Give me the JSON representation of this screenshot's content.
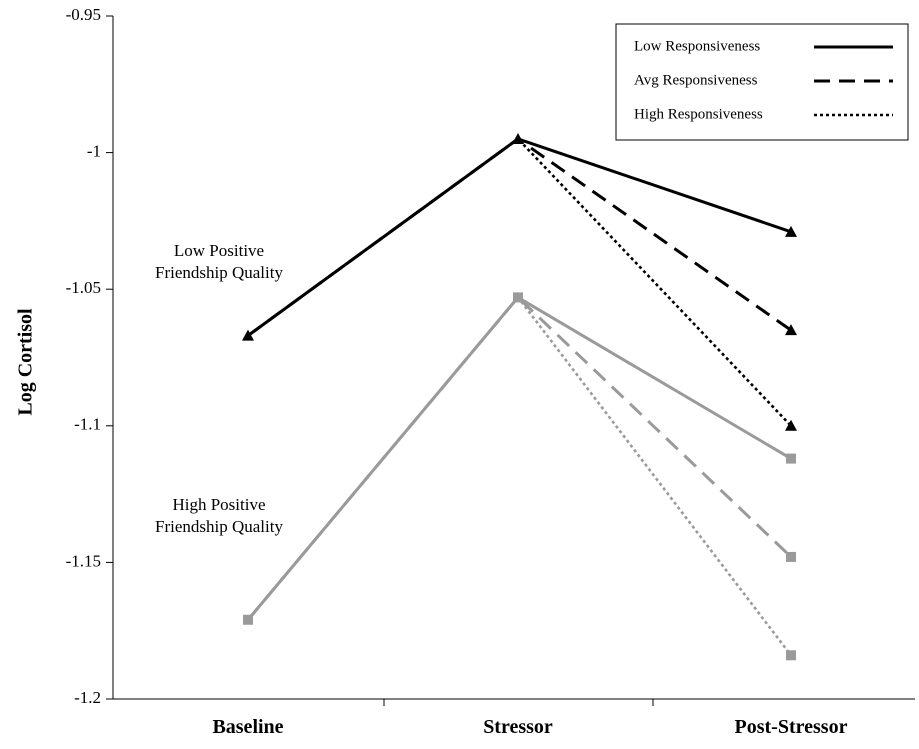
{
  "chart_data": {
    "type": "line",
    "title": "",
    "xlabel": "",
    "ylabel": "Log Cortisol",
    "categories": [
      "Baseline",
      "Stressor",
      "Post-Stressor"
    ],
    "ylim": [
      -1.2,
      -0.95
    ],
    "yticks": [
      -0.95,
      -1,
      -1.05,
      -1.1,
      -1.15,
      -1.2
    ],
    "ytick_labels": [
      "-0.95",
      "-1",
      "-1.05",
      "-1.1",
      "-1.15",
      "-1.2"
    ],
    "grid": false,
    "legend_position": "top-right",
    "legend": [
      {
        "label": "Low Responsiveness",
        "dash": "solid"
      },
      {
        "label": "Avg Responsiveness",
        "dash": "dashed"
      },
      {
        "label": "High Responsiveness",
        "dash": "dotted"
      }
    ],
    "groups": [
      {
        "annotation_lines": [
          "Low Positive",
          "Friendship Quality"
        ],
        "color": "#000000",
        "marker": "triangle",
        "series": [
          {
            "name": "Low Responsiveness",
            "dash": "solid",
            "values": [
              -1.067,
              -0.995,
              -1.029
            ]
          },
          {
            "name": "Avg Responsiveness",
            "dash": "dashed",
            "values": [
              -1.067,
              -0.995,
              -1.065
            ]
          },
          {
            "name": "High Responsiveness",
            "dash": "dotted",
            "values": [
              -1.067,
              -0.995,
              -1.1
            ]
          }
        ]
      },
      {
        "annotation_lines": [
          "High Positive",
          "Friendship Quality"
        ],
        "color": "#9a9a9a",
        "marker": "square",
        "series": [
          {
            "name": "Low Responsiveness",
            "dash": "solid",
            "values": [
              -1.171,
              -1.053,
              -1.112
            ]
          },
          {
            "name": "Avg Responsiveness",
            "dash": "dashed",
            "values": [
              -1.171,
              -1.053,
              -1.148
            ]
          },
          {
            "name": "High Responsiveness",
            "dash": "dotted",
            "values": [
              -1.171,
              -1.053,
              -1.184
            ]
          }
        ]
      }
    ]
  }
}
